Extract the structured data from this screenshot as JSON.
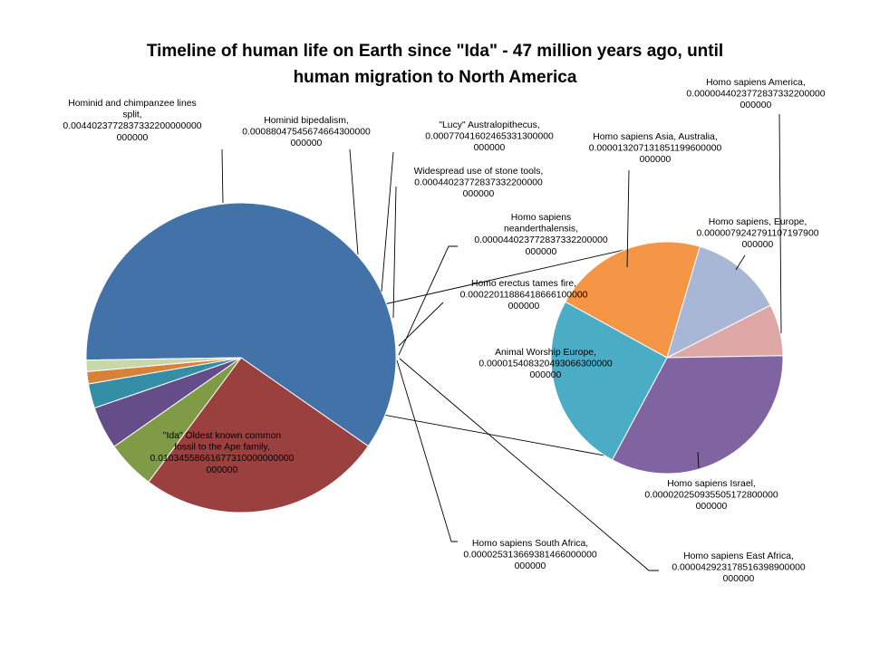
{
  "chart_data": {
    "type": "pie",
    "subtype": "pie-of-pie",
    "title": "Timeline of human life on Earth since \"Ida\"  -  47 million years ago, until human migration to North America",
    "title_lines": [
      "Timeline of human life on Earth since \"Ida\"  -  47 million years ago, until",
      "human migration to North America"
    ],
    "main_pie": [
      {
        "label": "\"Ida\" Oldest known common fossil to the Ape family",
        "value": 0.0103455866167731,
        "value_text": "0.0103455866167731000000000000000",
        "color": "#4372a9",
        "label_lines": [
          "\"Ida\" Oldest known common",
          "fossil to the Ape family,",
          "0.01034558661677310000000000",
          "000000"
        ]
      },
      {
        "label": "Hominid and chimpanzee lines split",
        "value": 0.00440237728373322,
        "value_text": "0.00440237728373322000000000000000",
        "color": "#9a4140",
        "label_lines": [
          "Hominid and chimpanzee lines",
          "split,",
          "0.0044023772837332200000000",
          "000000"
        ]
      },
      {
        "label": "Hominid bipedalism",
        "value": 0.000880475456746643,
        "value_text": "0.00088047545674664300000000000000",
        "color": "#7f9b45",
        "label_lines": [
          "Hominid bipedalism,",
          "0.00088047545674664300000",
          "000000"
        ]
      },
      {
        "label": "\"Lucy\" Australopithecus",
        "value": 0.000770416024653313,
        "value_text": "0.00077041602465331300000000000000",
        "color": "#654d89",
        "label_lines": [
          "\"Lucy\" Australopithecus,",
          "0.00077041602465331300000",
          "000000"
        ]
      },
      {
        "label": "Widespread use of stone tools",
        "value": 0.000440237728373322,
        "value_text": "0.00044023772837332200000000000000",
        "color": "#338ea6",
        "label_lines": [
          "Widespread use of stone tools,",
          "0.00044023772837332200000",
          "000000"
        ]
      },
      {
        "label": "Homo erectus tames fire",
        "value": 0.000220118864186661,
        "value_text": "0.00022011886418666100000000000000",
        "color": "#d8813a",
        "label_lines": [
          "Homo erectus tames fire,",
          "0.00022011886418666100000",
          "000000"
        ]
      },
      {
        "label": "Other",
        "value": 0.000205,
        "color": "#c8d8a8",
        "label_lines": []
      }
    ],
    "secondary_pie": [
      {
        "label": "Homo sapiens Asia, Australia",
        "value": 1.32071318511996e-05,
        "value_text": "0.000013207131851199600000000000",
        "color": "#f59546",
        "label_lines": [
          "Homo sapiens Asia, Australia,",
          "0.000013207131851199600000",
          "000000"
        ]
      },
      {
        "label": "Homo sapiens, Europe",
        "value": 7.92427911071979e-06,
        "value_text": "0.0000079242791107197900000000",
        "color": "#a9b7d6",
        "label_lines": [
          "Homo sapiens, Europe,",
          "0.0000079242791107197900",
          "000000"
        ]
      },
      {
        "label": "Homo sapiens America",
        "value": 4.40237728373322e-06,
        "value_text": "0.0000044023772837332200000000",
        "color": "#dea8a7",
        "label_lines": [
          "Homo sapiens America,",
          "0.0000044023772837332200000",
          "000000"
        ]
      },
      {
        "label": "Homo sapiens Israel",
        "value": 2.02509355051728e-05,
        "value_text": "0.000020250935505172800000000000",
        "color": "#8064a2",
        "label_lines": [
          "Homo sapiens Israel,",
          "0.000020250935505172800000",
          "000000"
        ]
      },
      {
        "label": "Animal Worship Europe",
        "value": 1.54083204930663e-05,
        "value_text": "0.000015408320493066300000000000",
        "color": "#4bacc6",
        "label_lines": [
          "Animal Worship Europe,",
          "0.000015408320493066300000",
          "000000"
        ]
      }
    ],
    "other_labels": [
      {
        "label": "Homo sapiens neanderthalensis",
        "value": 4.40237728373322e-05,
        "value_text": "0.000044023772837332200000000000",
        "label_lines": [
          "Homo sapiens",
          "neanderthalensis,",
          "0.000044023772837332200000",
          "000000"
        ]
      },
      {
        "label": "Homo sapiens South Africa",
        "value": 2.5313669381466e-05,
        "value_text": "0.000025313669381466000000000000",
        "label_lines": [
          "Homo sapiens South Africa,",
          "0.000025313669381466000000",
          "000000"
        ]
      },
      {
        "label": "Homo sapiens East Africa",
        "value": 4.29231785163989e-05,
        "value_text": "0.000042923178516398900000000000",
        "label_lines": [
          "Homo sapiens East Africa,",
          "0.000042923178516398900000",
          "000000"
        ]
      }
    ],
    "legend": "none"
  }
}
